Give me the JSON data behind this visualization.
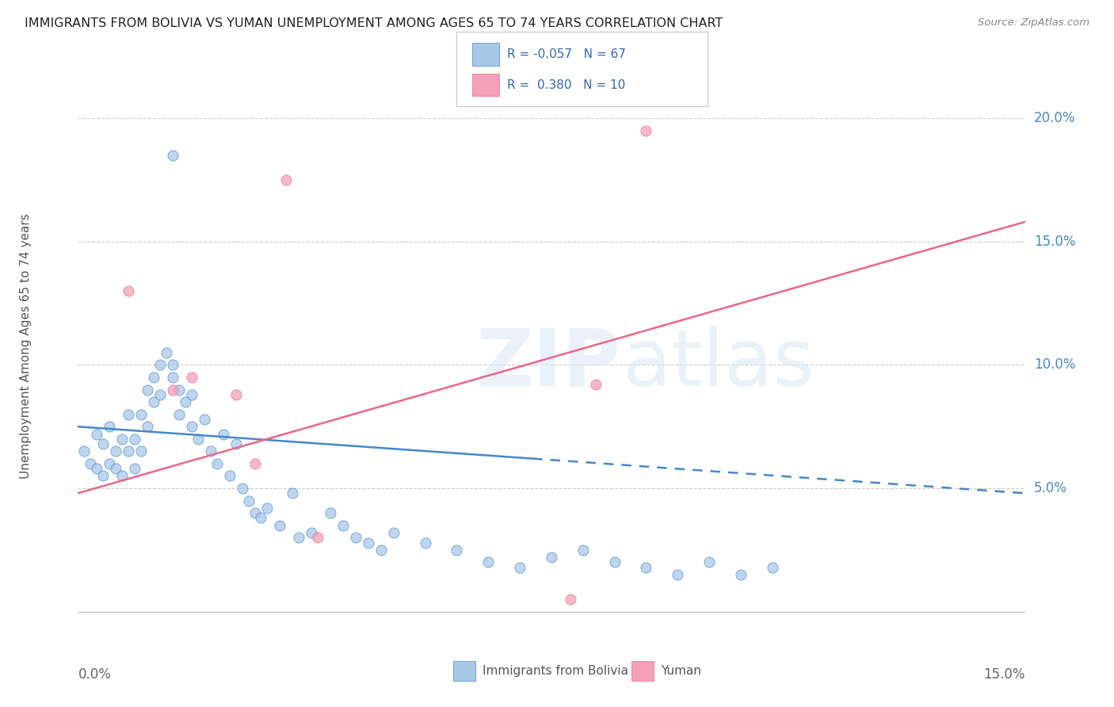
{
  "title": "IMMIGRANTS FROM BOLIVIA VS YUMAN UNEMPLOYMENT AMONG AGES 65 TO 74 YEARS CORRELATION CHART",
  "source": "Source: ZipAtlas.com",
  "ylabel": "Unemployment Among Ages 65 to 74 years",
  "ytick_labels": [
    "5.0%",
    "10.0%",
    "15.0%",
    "20.0%"
  ],
  "ytick_values": [
    0.05,
    0.1,
    0.15,
    0.2
  ],
  "xlim": [
    0.0,
    0.15
  ],
  "ylim": [
    -0.01,
    0.225
  ],
  "legend_label1": "Immigrants from Bolivia",
  "legend_label2": "Yuman",
  "legend_r1": "-0.057",
  "legend_n1": "67",
  "legend_r2": "0.380",
  "legend_n2": "10",
  "color_bolivia": "#a8c8e8",
  "color_yuman": "#f4a0b8",
  "color_line_bolivia": "#4488cc",
  "color_line_yuman": "#ee6688",
  "color_ytick": "#4488cc",
  "bolivia_x": [
    0.001,
    0.002,
    0.003,
    0.003,
    0.004,
    0.004,
    0.005,
    0.005,
    0.006,
    0.006,
    0.007,
    0.007,
    0.008,
    0.008,
    0.009,
    0.009,
    0.01,
    0.01,
    0.011,
    0.011,
    0.012,
    0.012,
    0.013,
    0.013,
    0.014,
    0.015,
    0.015,
    0.016,
    0.016,
    0.017,
    0.018,
    0.018,
    0.019,
    0.02,
    0.021,
    0.022,
    0.023,
    0.024,
    0.025,
    0.026,
    0.027,
    0.028,
    0.029,
    0.03,
    0.032,
    0.034,
    0.035,
    0.037,
    0.04,
    0.042,
    0.044,
    0.046,
    0.048,
    0.05,
    0.055,
    0.06,
    0.065,
    0.07,
    0.075,
    0.08,
    0.085,
    0.09,
    0.095,
    0.1,
    0.105,
    0.11,
    0.015
  ],
  "bolivia_y": [
    0.065,
    0.06,
    0.058,
    0.072,
    0.055,
    0.068,
    0.06,
    0.075,
    0.058,
    0.065,
    0.07,
    0.055,
    0.065,
    0.08,
    0.058,
    0.07,
    0.065,
    0.08,
    0.075,
    0.09,
    0.085,
    0.095,
    0.088,
    0.1,
    0.105,
    0.095,
    0.1,
    0.09,
    0.08,
    0.085,
    0.075,
    0.088,
    0.07,
    0.078,
    0.065,
    0.06,
    0.072,
    0.055,
    0.068,
    0.05,
    0.045,
    0.04,
    0.038,
    0.042,
    0.035,
    0.048,
    0.03,
    0.032,
    0.04,
    0.035,
    0.03,
    0.028,
    0.025,
    0.032,
    0.028,
    0.025,
    0.02,
    0.018,
    0.022,
    0.025,
    0.02,
    0.018,
    0.015,
    0.02,
    0.015,
    0.018,
    0.185
  ],
  "yuman_x": [
    0.008,
    0.015,
    0.018,
    0.025,
    0.028,
    0.033,
    0.038,
    0.078,
    0.082,
    0.09
  ],
  "yuman_y": [
    0.13,
    0.09,
    0.095,
    0.088,
    0.06,
    0.175,
    0.03,
    0.005,
    0.092,
    0.195
  ],
  "trend_b_x0": 0.0,
  "trend_b_x1": 0.15,
  "trend_b_y0": 0.075,
  "trend_b_y1": 0.048,
  "trend_b_solid_end": 0.072,
  "trend_y_x0": 0.0,
  "trend_y_x1": 0.15,
  "trend_y_y0": 0.048,
  "trend_y_y1": 0.158
}
